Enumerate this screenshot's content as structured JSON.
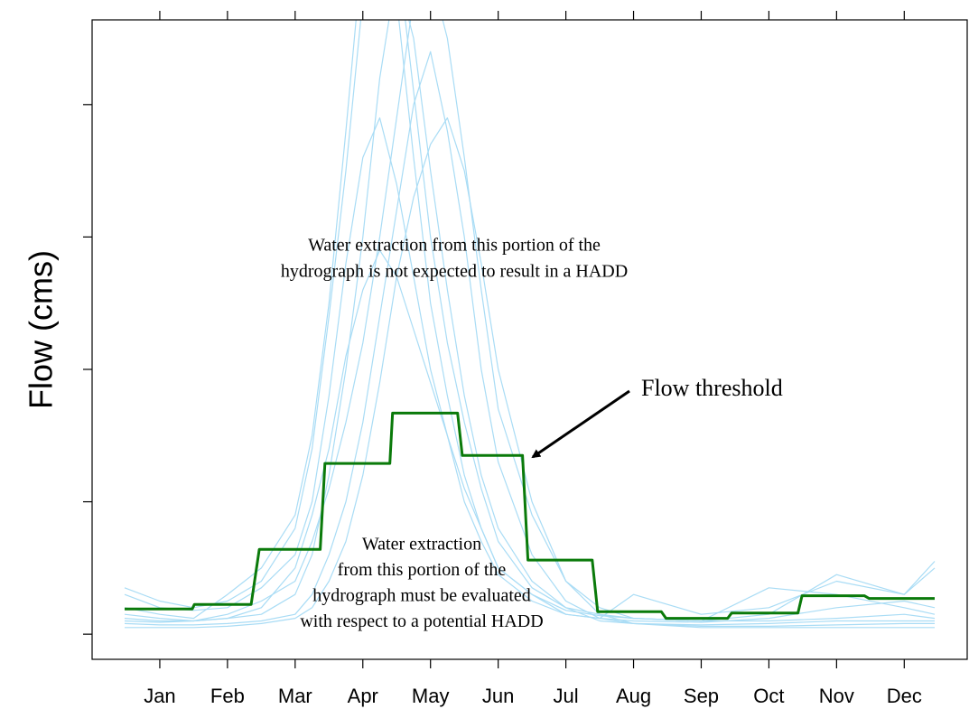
{
  "chart_data": {
    "type": "line",
    "y_label": "Flow (cms)",
    "xlim": [
      0,
      12.93
    ],
    "ylim": [
      -0.19,
      4.64
    ],
    "xticks": [
      {
        "value": 1,
        "label": "Jan"
      },
      {
        "value": 2,
        "label": "Feb"
      },
      {
        "value": 3,
        "label": "Mar"
      },
      {
        "value": 4,
        "label": "Apr"
      },
      {
        "value": 5,
        "label": "May"
      },
      {
        "value": 6,
        "label": "Jun"
      },
      {
        "value": 7,
        "label": "Jul"
      },
      {
        "value": 8,
        "label": "Aug"
      },
      {
        "value": 9,
        "label": "Sep"
      },
      {
        "value": 10,
        "label": "Oct"
      },
      {
        "value": 11,
        "label": "Nov"
      },
      {
        "value": 12,
        "label": "Dec"
      }
    ],
    "yticks": [
      0,
      1,
      2,
      3,
      4
    ],
    "series": [
      {
        "color": "#a9dcf5",
        "x": [
          0.48,
          1,
          1.5,
          2,
          2.5,
          3,
          3.25,
          3.5,
          3.75,
          4,
          4.25,
          4.5,
          4.75,
          5,
          5.25,
          5.5,
          5.75,
          6,
          6.5,
          7,
          7.5,
          8,
          9,
          10,
          11,
          12,
          12.45
        ],
        "values": [
          0.12,
          0.1,
          0.1,
          0.12,
          0.15,
          0.3,
          0.6,
          1.2,
          2.0,
          3.0,
          4.2,
          5.0,
          4.5,
          3.5,
          2.6,
          1.8,
          1.2,
          0.8,
          0.4,
          0.2,
          0.1,
          0.08,
          0.07,
          0.08,
          0.1,
          0.1,
          0.1
        ]
      },
      {
        "color": "#a9dcf5",
        "x": [
          0.48,
          1,
          1.5,
          2,
          2.5,
          3,
          3.25,
          3.5,
          3.75,
          4,
          4.25,
          4.5,
          4.75,
          5,
          5.25,
          5.5,
          5.75,
          6,
          6.5,
          7,
          7.5,
          8,
          9,
          10,
          11,
          12,
          12.45
        ],
        "values": [
          0.2,
          0.15,
          0.12,
          0.3,
          0.5,
          0.9,
          1.5,
          2.5,
          3.8,
          5.2,
          5.5,
          4.8,
          3.6,
          2.5,
          1.8,
          1.2,
          0.8,
          0.5,
          0.3,
          0.15,
          0.12,
          0.1,
          0.09,
          0.12,
          0.2,
          0.25,
          0.2
        ]
      },
      {
        "color": "#a9dcf5",
        "x": [
          0.48,
          1,
          1.5,
          2,
          2.5,
          3,
          3.25,
          3.5,
          3.75,
          4,
          4.25,
          4.5,
          4.75,
          5,
          5.25,
          5.5,
          5.75,
          6,
          6.5,
          7,
          7.5,
          8,
          9,
          10,
          11,
          12,
          12.45
        ],
        "values": [
          0.08,
          0.07,
          0.07,
          0.08,
          0.1,
          0.15,
          0.3,
          0.6,
          1.0,
          1.6,
          2.4,
          3.2,
          4.0,
          4.4,
          3.8,
          3.0,
          2.0,
          1.3,
          0.6,
          0.25,
          0.12,
          0.08,
          0.06,
          0.06,
          0.07,
          0.08,
          0.08
        ]
      },
      {
        "color": "#a9dcf5",
        "x": [
          0.48,
          1,
          1.5,
          2,
          2.5,
          3,
          3.25,
          3.5,
          3.75,
          4,
          4.25,
          4.5,
          4.75,
          5,
          5.25,
          5.5,
          5.75,
          6,
          6.5,
          7,
          7.5,
          8,
          9,
          10,
          11,
          12,
          12.45
        ],
        "values": [
          0.3,
          0.2,
          0.18,
          0.2,
          0.35,
          0.6,
          1.0,
          1.8,
          2.8,
          3.6,
          3.9,
          3.4,
          2.7,
          2.0,
          1.5,
          1.0,
          0.7,
          0.45,
          0.25,
          0.15,
          0.12,
          0.3,
          0.15,
          0.2,
          0.4,
          0.3,
          0.5
        ]
      },
      {
        "color": "#a9dcf5",
        "x": [
          0.48,
          1,
          1.5,
          2,
          2.5,
          3,
          3.25,
          3.5,
          3.75,
          4,
          4.25,
          4.5,
          4.75,
          5,
          5.25,
          5.5,
          5.75,
          6,
          6.5,
          7,
          7.5,
          8,
          9,
          10,
          11,
          12,
          12.45
        ],
        "values": [
          0.1,
          0.09,
          0.1,
          0.15,
          0.25,
          0.4,
          0.7,
          1.1,
          1.6,
          2.2,
          3.0,
          3.9,
          4.8,
          5.0,
          4.5,
          3.6,
          2.6,
          1.7,
          0.9,
          0.4,
          0.2,
          0.12,
          0.1,
          0.1,
          0.12,
          0.15,
          0.12
        ]
      },
      {
        "color": "#a9dcf5",
        "x": [
          0.48,
          1,
          1.5,
          2,
          2.5,
          3,
          3.25,
          3.5,
          3.75,
          4,
          4.25,
          4.5,
          4.75,
          5,
          5.25,
          5.5,
          5.75,
          6,
          6.5,
          7,
          7.5,
          8,
          9,
          10,
          11,
          12,
          12.45
        ],
        "values": [
          0.15,
          0.12,
          0.1,
          0.12,
          0.2,
          0.5,
          0.9,
          1.4,
          2.1,
          2.6,
          2.9,
          2.7,
          2.3,
          1.9,
          1.5,
          1.1,
          0.8,
          0.5,
          0.3,
          0.18,
          0.14,
          0.12,
          0.1,
          0.35,
          0.3,
          0.2,
          0.15
        ]
      },
      {
        "color": "#a9dcf5",
        "x": [
          0.48,
          1,
          1.5,
          2,
          2.5,
          3,
          3.25,
          3.5,
          3.75,
          4,
          4.25,
          4.5,
          4.75,
          5,
          5.25,
          5.5,
          5.75,
          6,
          6.5,
          7,
          7.5,
          8,
          9,
          10,
          11,
          12,
          12.45
        ],
        "values": [
          0.05,
          0.05,
          0.05,
          0.06,
          0.08,
          0.12,
          0.2,
          0.4,
          0.7,
          1.2,
          1.9,
          2.7,
          3.3,
          3.7,
          3.9,
          3.5,
          2.8,
          2.0,
          1.0,
          0.4,
          0.15,
          0.08,
          0.05,
          0.05,
          0.05,
          0.05,
          0.05
        ]
      },
      {
        "color": "#a9dcf5",
        "x": [
          0.48,
          1,
          1.5,
          2,
          2.5,
          3,
          3.25,
          3.5,
          3.75,
          4,
          4.25,
          4.5,
          4.75,
          5,
          5.25,
          5.5,
          5.75,
          6,
          6.5,
          7,
          7.5,
          8,
          9,
          10,
          11,
          12,
          12.45
        ],
        "values": [
          0.35,
          0.25,
          0.2,
          0.25,
          0.4,
          0.8,
          1.4,
          2.4,
          3.5,
          4.8,
          5.6,
          5.2,
          4.1,
          3.0,
          2.2,
          1.6,
          1.1,
          0.7,
          0.35,
          0.2,
          0.15,
          0.12,
          0.1,
          0.15,
          0.45,
          0.3,
          0.55
        ]
      },
      {
        "color": "#0a7a0a",
        "width": 3,
        "x": [
          0.48,
          1.48,
          1.51,
          2.35,
          2.47,
          3.37,
          3.44,
          4.4,
          4.44,
          5.4,
          5.47,
          6.36,
          6.44,
          7.39,
          7.47,
          8.41,
          8.48,
          9.39,
          9.45,
          10.43,
          10.49,
          11.41,
          11.48,
          12.45
        ],
        "values": [
          0.19,
          0.19,
          0.225,
          0.225,
          0.64,
          0.64,
          1.29,
          1.29,
          1.67,
          1.67,
          1.35,
          1.35,
          0.56,
          0.56,
          0.17,
          0.17,
          0.12,
          0.12,
          0.16,
          0.16,
          0.29,
          0.29,
          0.27,
          0.27
        ]
      }
    ],
    "annotations": [
      {
        "lines": [
          "Water extraction from this portion of the",
          "hydrograph is not expected to result in a HADD"
        ]
      },
      {
        "lines": [
          "Water extraction",
          "from this portion of the",
          "hydrograph must be evaluated",
          "with respect to a potential HADD"
        ]
      },
      {
        "lines": [
          "Flow threshold"
        ]
      }
    ]
  }
}
